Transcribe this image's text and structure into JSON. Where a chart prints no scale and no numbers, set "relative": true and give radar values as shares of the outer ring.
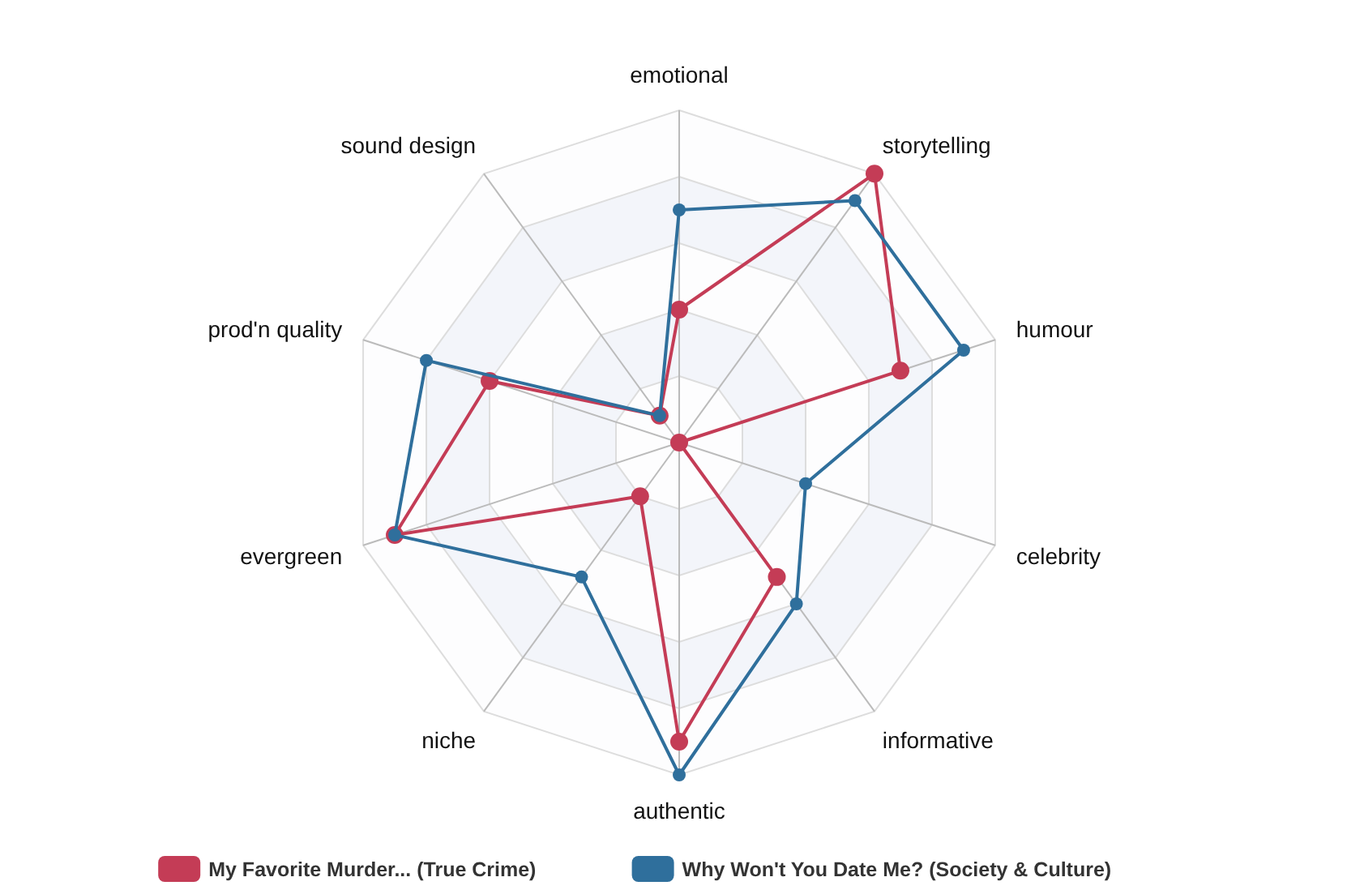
{
  "chart_data": {
    "type": "radar",
    "relative": true,
    "grid": true,
    "marker": "circle",
    "legend": "bottom",
    "categories": [
      "emotional",
      "storytelling",
      "humour",
      "celebrity",
      "informative",
      "authentic",
      "niche",
      "evergreen",
      "prod'n quality",
      "sound design"
    ],
    "series": [
      {
        "name": "My Favorite Murder... (True Crime)",
        "color": "#c43c56",
        "values": [
          0.4,
          1.0,
          0.7,
          0,
          0.5,
          0.9,
          0.2,
          0.9,
          0.6,
          0.1
        ]
      },
      {
        "name": "Why Won't You Date Me? (Society & Culture)",
        "color": "#2f6f9c",
        "values": [
          0.7,
          0.9,
          0.9,
          0.4,
          0.6,
          1.0,
          0.5,
          0.9,
          0.8,
          0.1
        ]
      }
    ]
  }
}
